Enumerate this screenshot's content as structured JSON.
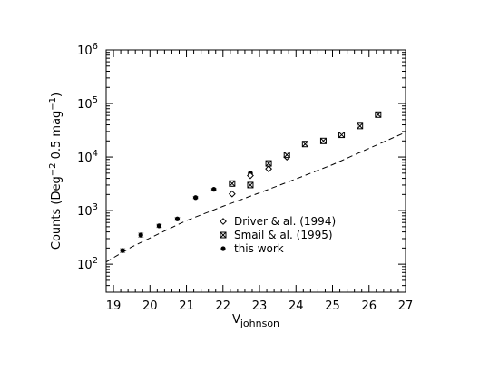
{
  "chart_data": {
    "type": "scatter",
    "xlabel": "V",
    "xlabel_sub": "johnson",
    "ylabel_parts": [
      "Counts (Deg",
      "−2",
      " 0.5 mag",
      "−1",
      ")"
    ],
    "xlim": [
      18.8,
      27
    ],
    "ylim": [
      30,
      1000000
    ],
    "yscale": "log",
    "x_ticks": [
      19,
      20,
      21,
      22,
      23,
      24,
      25,
      26,
      27
    ],
    "y_tick_exponents": [
      2,
      3,
      4,
      5,
      6
    ],
    "grid": false,
    "legend_position": "lower-right",
    "legend": [
      {
        "marker": "diamond",
        "label": "Driver & al. (1994)"
      },
      {
        "marker": "boxed-x",
        "label": "Smail & al. (1995)"
      },
      {
        "marker": "dot",
        "label": "this work"
      }
    ],
    "series": [
      {
        "name": "this work",
        "marker": "dot",
        "points": [
          {
            "x": 19.25,
            "y": 180,
            "err": [
              165,
              195
            ]
          },
          {
            "x": 19.75,
            "y": 350,
            "err": [
              320,
              380
            ]
          },
          {
            "x": 20.25,
            "y": 520,
            "err": [
              485,
              555
            ]
          },
          {
            "x": 20.75,
            "y": 700,
            "err": [
              660,
              740
            ]
          },
          {
            "x": 21.25,
            "y": 1750,
            "err": [
              1680,
              1820
            ]
          },
          {
            "x": 21.75,
            "y": 2500,
            "err": [
              2420,
              2580
            ]
          },
          {
            "x": 22.25,
            "y": 3100,
            "err": [
              3000,
              3200
            ]
          },
          {
            "x": 22.75,
            "y": 5000,
            "err": [
              4850,
              5150
            ]
          },
          {
            "x": 23.25,
            "y": 7800,
            "err": [
              7600,
              8000
            ]
          },
          {
            "x": 23.75,
            "y": 10500,
            "err": [
              10200,
              10800
            ]
          }
        ]
      },
      {
        "name": "Driver & al. (1994)",
        "marker": "diamond",
        "points": [
          {
            "x": 22.25,
            "y": 2050
          },
          {
            "x": 22.75,
            "y": 4500
          },
          {
            "x": 23.25,
            "y": 6000
          },
          {
            "x": 23.75,
            "y": 10000
          }
        ]
      },
      {
        "name": "Smail & al. (1995)",
        "marker": "boxed-x",
        "points": [
          {
            "x": 22.25,
            "y": 3200
          },
          {
            "x": 22.75,
            "y": 3000
          },
          {
            "x": 23.25,
            "y": 7600
          },
          {
            "x": 23.75,
            "y": 11000
          },
          {
            "x": 24.25,
            "y": 17500
          },
          {
            "x": 24.75,
            "y": 20000
          },
          {
            "x": 25.25,
            "y": 26000
          },
          {
            "x": 25.75,
            "y": 38000
          },
          {
            "x": 26.25,
            "y": 62000
          }
        ]
      }
    ],
    "model_line": {
      "style": "dashed",
      "points": [
        {
          "x": 18.8,
          "y": 110
        },
        {
          "x": 19.5,
          "y": 210
        },
        {
          "x": 20.5,
          "y": 450
        },
        {
          "x": 21.0,
          "y": 650
        },
        {
          "x": 22.0,
          "y": 1200
        },
        {
          "x": 23.0,
          "y": 2150
        },
        {
          "x": 24.0,
          "y": 3900
        },
        {
          "x": 25.0,
          "y": 7200
        },
        {
          "x": 26.0,
          "y": 14500
        },
        {
          "x": 27.0,
          "y": 29000
        }
      ]
    }
  }
}
